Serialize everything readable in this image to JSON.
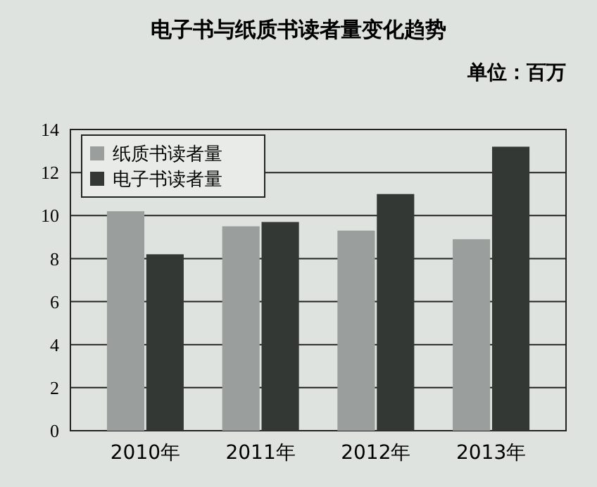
{
  "chart_data": {
    "type": "bar",
    "title": "电子书与纸质书读者量变化趋势",
    "annotations": [
      "单位：百万"
    ],
    "categories": [
      "2010年",
      "2011年",
      "2012年",
      "2013年"
    ],
    "series": [
      {
        "name": "纸质书读者量",
        "color": "#9a9e9c",
        "values": [
          10.2,
          9.5,
          9.3,
          8.9
        ]
      },
      {
        "name": "电子书读者量",
        "color": "#333835",
        "values": [
          8.2,
          9.7,
          11.0,
          13.2
        ]
      }
    ],
    "ylim": [
      0,
      14
    ],
    "yticks": [
      0,
      2,
      4,
      6,
      8,
      10,
      12,
      14
    ],
    "grid": "y",
    "legend": "top left"
  }
}
